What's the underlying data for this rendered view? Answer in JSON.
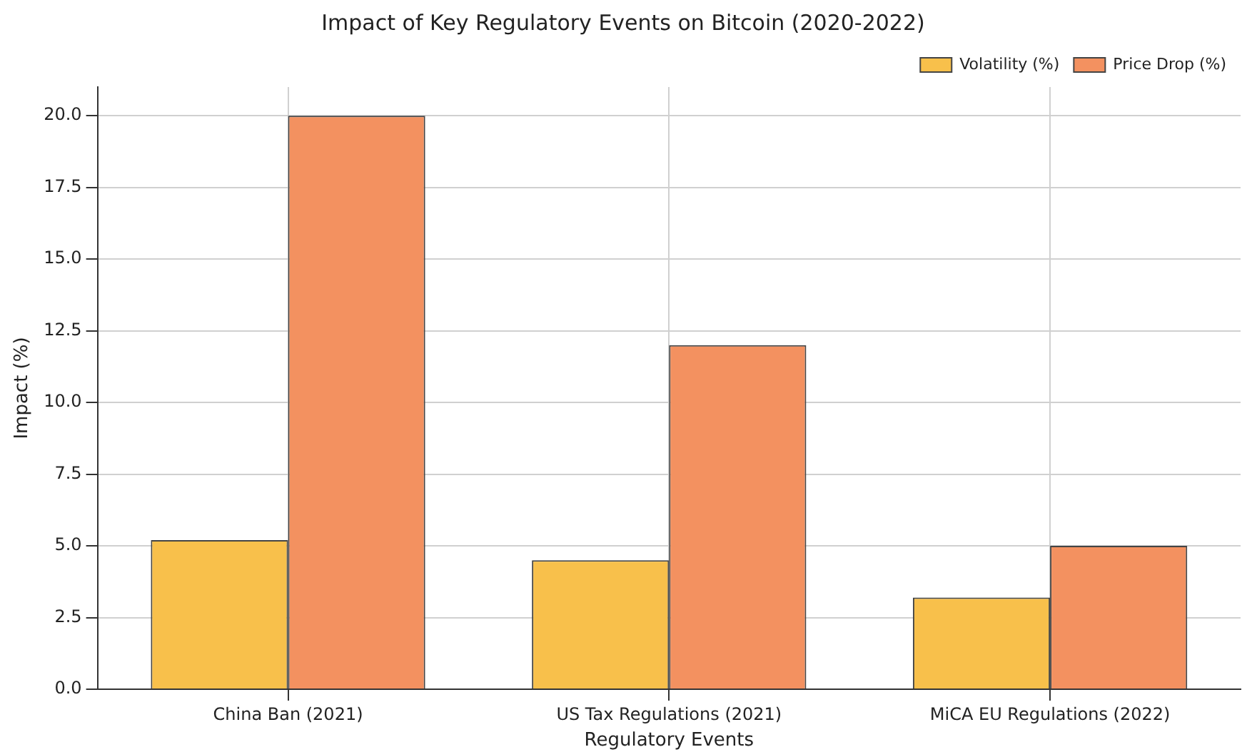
{
  "chart_data": {
    "type": "bar",
    "title": "Impact of Key Regulatory Events on Bitcoin (2020-2022)",
    "xlabel": "Regulatory Events",
    "ylabel": "Impact (%)",
    "categories": [
      "China Ban (2021)",
      "US Tax Regulations (2021)",
      "MiCA EU Regulations (2022)"
    ],
    "series": [
      {
        "name": "Volatility (%)",
        "color": "#f8c04b",
        "values": [
          5.2,
          4.5,
          3.2
        ]
      },
      {
        "name": "Price Drop (%)",
        "color": "#f39160",
        "values": [
          20,
          12,
          5
        ]
      }
    ],
    "ylim": [
      0,
      21
    ],
    "yticks": [
      {
        "value": 0,
        "label": "0.0"
      },
      {
        "value": 2.5,
        "label": "2.5"
      },
      {
        "value": 5,
        "label": "5.0"
      },
      {
        "value": 7.5,
        "label": "7.5"
      },
      {
        "value": 10,
        "label": "10.0"
      },
      {
        "value": 12.5,
        "label": "12.5"
      },
      {
        "value": 15,
        "label": "15.0"
      },
      {
        "value": 17.5,
        "label": "17.5"
      },
      {
        "value": 20,
        "label": "20.0"
      }
    ],
    "grid": true,
    "legend": "top right"
  }
}
